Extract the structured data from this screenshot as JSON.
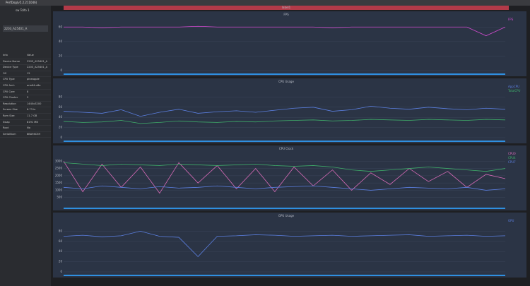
{
  "app": {
    "title": "PerfDog(v5.2.211046)",
    "user": "sw Tolfo 1",
    "device": "2203_A25401_A",
    "tab": "label1",
    "info_header": [
      "Info",
      "Value"
    ],
    "info": [
      [
        "Device Name",
        "2203_A25401_A"
      ],
      [
        "Device Type",
        "2203_A25401_A"
      ],
      [
        "OS",
        "12"
      ],
      [
        "CPU Type",
        "pineapple"
      ],
      [
        "CPU Arch",
        "arm64-v8a"
      ],
      [
        "CPU Core",
        "8"
      ],
      [
        "CPU Cluster",
        "3"
      ],
      [
        "Resolution",
        "1440x3200"
      ],
      [
        "Screen Size",
        "6.73 in"
      ],
      [
        "Rom Size",
        "11.7 GB"
      ],
      [
        "Swap",
        "8191 MB"
      ],
      [
        "Root",
        "No"
      ],
      [
        "SerialNum",
        "8BA9XC5H"
      ]
    ]
  },
  "charts": [
    {
      "type": "line",
      "title": "FPS",
      "ylim": [
        0,
        70
      ],
      "yticks": [
        0,
        20,
        40,
        60
      ],
      "series": [
        {
          "name": "FPS",
          "color": "#d24bd0",
          "values": [
            60,
            60,
            59,
            60,
            60,
            60,
            60,
            61,
            60,
            60,
            60,
            60,
            60,
            60,
            59,
            60,
            60,
            60,
            60,
            60,
            60,
            60,
            48,
            60
          ]
        }
      ]
    },
    {
      "type": "line",
      "title": "CPU Usage",
      "ylim": [
        0,
        100
      ],
      "yticks": [
        0,
        20,
        40,
        60,
        80
      ],
      "series": [
        {
          "name": "AppCPU",
          "color": "#5b7fe0",
          "values": [
            52,
            50,
            48,
            55,
            42,
            50,
            56,
            48,
            51,
            53,
            50,
            54,
            58,
            60,
            52,
            55,
            62,
            58,
            56,
            60,
            57,
            55,
            58,
            56
          ]
        },
        {
          "name": "TotalCPU",
          "color": "#3fae6a",
          "values": [
            32,
            30,
            31,
            34,
            28,
            30,
            33,
            31,
            30,
            32,
            31,
            33,
            34,
            35,
            33,
            34,
            36,
            35,
            34,
            36,
            35,
            34,
            36,
            35
          ]
        }
      ]
    },
    {
      "type": "line",
      "title": "CPU Clock",
      "ylim": [
        0,
        3500
      ],
      "yticks": [
        500,
        1000,
        1500,
        2000,
        2500,
        3000
      ],
      "series": [
        {
          "name": "CPU0",
          "color": "#d96bb8",
          "values": [
            3000,
            900,
            2800,
            1200,
            2600,
            800,
            2900,
            1500,
            2700,
            1100,
            2500,
            900,
            2600,
            1300,
            2400,
            1000,
            2200,
            1400,
            2500,
            1600,
            2300,
            1200,
            2100,
            1800
          ]
        },
        {
          "name": "CPU4",
          "color": "#3fae6a",
          "values": [
            2900,
            2800,
            2700,
            2800,
            2750,
            2700,
            2800,
            2750,
            2700,
            2750,
            2800,
            2700,
            2650,
            2700,
            2600,
            2400,
            2300,
            2400,
            2500,
            2600,
            2500,
            2400,
            2300,
            2500
          ]
        },
        {
          "name": "CPU7",
          "color": "#5b7fe0",
          "values": [
            1200,
            1100,
            1300,
            1200,
            1100,
            1250,
            1150,
            1200,
            1300,
            1200,
            1100,
            1200,
            1250,
            1300,
            1200,
            1100,
            1000,
            1100,
            1200,
            1150,
            1100,
            1200,
            1000,
            1100
          ]
        }
      ]
    },
    {
      "type": "line",
      "title": "GPU Usage",
      "ylim": [
        0,
        100
      ],
      "yticks": [
        0,
        20,
        40,
        60,
        80
      ],
      "series": [
        {
          "name": "GPU",
          "color": "#5b7fe0",
          "values": [
            70,
            72,
            69,
            71,
            80,
            70,
            68,
            30,
            70,
            71,
            73,
            72,
            70,
            71,
            72,
            70,
            71,
            72,
            73,
            70,
            71,
            72,
            70,
            71
          ]
        }
      ]
    }
  ]
}
